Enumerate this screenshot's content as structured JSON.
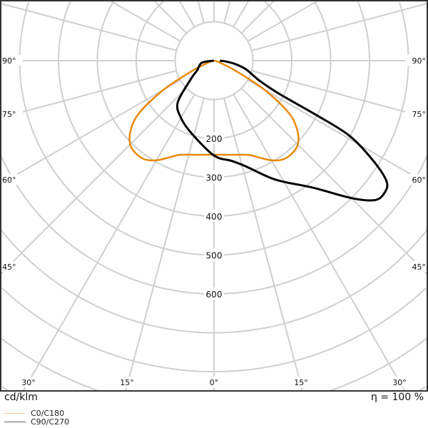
{
  "chart_data": {
    "type": "polar",
    "unit_label": "cd/klm",
    "efficiency_label": "η = 100 %",
    "radial_ticks": [
      200,
      300,
      400,
      500,
      600
    ],
    "radial_grid_step": 100,
    "radial_range": [
      0,
      1000
    ],
    "angle_grid_step_deg": 15,
    "angle_labels_side": [
      "90°",
      "75°",
      "60°",
      "45°"
    ],
    "angle_labels_bottom": [
      "30°",
      "15°",
      "0°",
      "15°",
      "30°"
    ],
    "grid": true,
    "legend_placement": "bottom-left",
    "series": [
      {
        "name": "C0/C180",
        "color": "#e8890c",
        "angles_deg": [
          -90,
          -80,
          -70,
          -65,
          -60,
          -55,
          -50,
          -45,
          -40,
          -35,
          -30,
          -25,
          -20,
          -10,
          0,
          10,
          20,
          25,
          30,
          35,
          40,
          45,
          50,
          55,
          60,
          65,
          70,
          80,
          90
        ],
        "values": [
          0,
          5,
          20,
          60,
          150,
          235,
          280,
          305,
          312,
          310,
          296,
          275,
          258,
          246,
          242,
          246,
          258,
          275,
          296,
          310,
          312,
          305,
          280,
          235,
          150,
          60,
          20,
          5,
          0
        ]
      },
      {
        "name": "C90/C270",
        "color": "#000000",
        "angles_deg": [
          -90,
          -80,
          -60,
          -52,
          -41,
          -30,
          -17,
          0,
          10,
          16.5,
          25,
          30,
          38,
          45,
          49,
          52,
          55,
          58,
          61,
          62,
          63,
          66,
          70,
          75,
          80,
          85,
          90
        ],
        "values": [
          0,
          32,
          50,
          74,
          142,
          170,
          196,
          244,
          262,
          283,
          330,
          360,
          415,
          500,
          547,
          555,
          542,
          480,
          398,
          300,
          190,
          130,
          105,
          84,
          60,
          35,
          15
        ]
      }
    ]
  }
}
